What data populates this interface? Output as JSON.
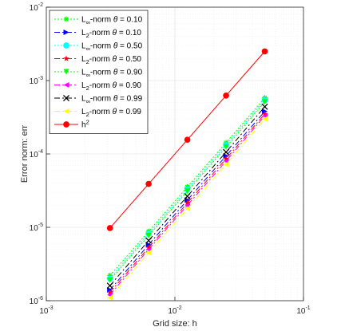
{
  "chart_data": {
    "type": "line",
    "x_scale": "log",
    "y_scale": "log",
    "grid": true,
    "legend_position": "top-left",
    "xlabel": "Grid size: h",
    "ylabel": "Error norm: err",
    "xlim": [
      0.001,
      0.1
    ],
    "ylim": [
      1e-06,
      0.01
    ],
    "x_ticks": [
      {
        "value": 0.001,
        "base": "10",
        "exp": "-3"
      },
      {
        "value": 0.01,
        "base": "10",
        "exp": "-2"
      },
      {
        "value": 0.1,
        "base": "10",
        "exp": "-1"
      }
    ],
    "y_ticks": [
      {
        "value": 1e-06,
        "base": "10",
        "exp": "-6"
      },
      {
        "value": 1e-05,
        "base": "10",
        "exp": "-5"
      },
      {
        "value": 0.0001,
        "base": "10",
        "exp": "-4"
      },
      {
        "value": 0.001,
        "base": "10",
        "exp": "-3"
      },
      {
        "value": 0.01,
        "base": "10",
        "exp": "-2"
      }
    ],
    "x": [
      0.003125,
      0.00625,
      0.0125,
      0.025,
      0.05
    ],
    "series": [
      {
        "norm": "L",
        "sub": "∞",
        "theta": "0.10",
        "color": "#00ff00",
        "dash": "2,2",
        "marker": "asterisk",
        "values": [
          2.2e-06,
          8.8e-06,
          3.55e-05,
          0.000142,
          0.00058
        ]
      },
      {
        "norm": "L",
        "sub": "2",
        "theta": "0.10",
        "color": "#0000ff",
        "dash": "7,3,2,3",
        "marker": "triangle-right",
        "values": [
          1.4e-06,
          5.8e-06,
          2.35e-05,
          9.4e-05,
          0.00038
        ]
      },
      {
        "norm": "L",
        "sub": "∞",
        "theta": "0.50",
        "color": "#00ffff",
        "dash": "2,2",
        "marker": "circle",
        "values": [
          2e-06,
          8.2e-06,
          3.3e-05,
          0.000132,
          0.00054
        ]
      },
      {
        "norm": "L",
        "sub": "2",
        "theta": "0.50",
        "color": "#ff0000",
        "dash": "7,3,2,3",
        "marker": "star",
        "values": [
          1.3e-06,
          5.3e-06,
          2.15e-05,
          8.6e-05,
          0.00035
        ]
      },
      {
        "norm": "L",
        "sub": "∞",
        "theta": "0.90",
        "color": "#00ff00",
        "dash": "2,2",
        "marker": "triangle-down",
        "values": [
          1.9e-06,
          7.7e-06,
          3.1e-05,
          0.000124,
          0.00051
        ]
      },
      {
        "norm": "L",
        "sub": "2",
        "theta": "0.90",
        "color": "#ff00ff",
        "dash": "7,3,2,3",
        "marker": "triangle-left",
        "values": [
          1.2e-06,
          5e-06,
          2e-05,
          8e-05,
          0.00033
        ]
      },
      {
        "norm": "L",
        "sub": "∞",
        "theta": "0.99",
        "color": "#000000",
        "dash": "7,3,2,3",
        "marker": "x",
        "values": [
          1.6e-06,
          6.6e-06,
          2.65e-05,
          0.000106,
          0.00044
        ]
      },
      {
        "norm": "L",
        "sub": "2",
        "theta": "0.99",
        "color": "#ffff00",
        "dash": "7,3,2,3",
        "marker": "triangle-left",
        "values": [
          1.1e-06,
          4.5e-06,
          1.8e-05,
          7.2e-05,
          0.0003
        ]
      },
      {
        "label": "h",
        "sup": "2",
        "color": "#ff0000",
        "dash": "",
        "marker": "filled-circle",
        "values": [
          9.77e-06,
          3.91e-05,
          0.000156,
          0.000625,
          0.0025
        ]
      }
    ]
  }
}
